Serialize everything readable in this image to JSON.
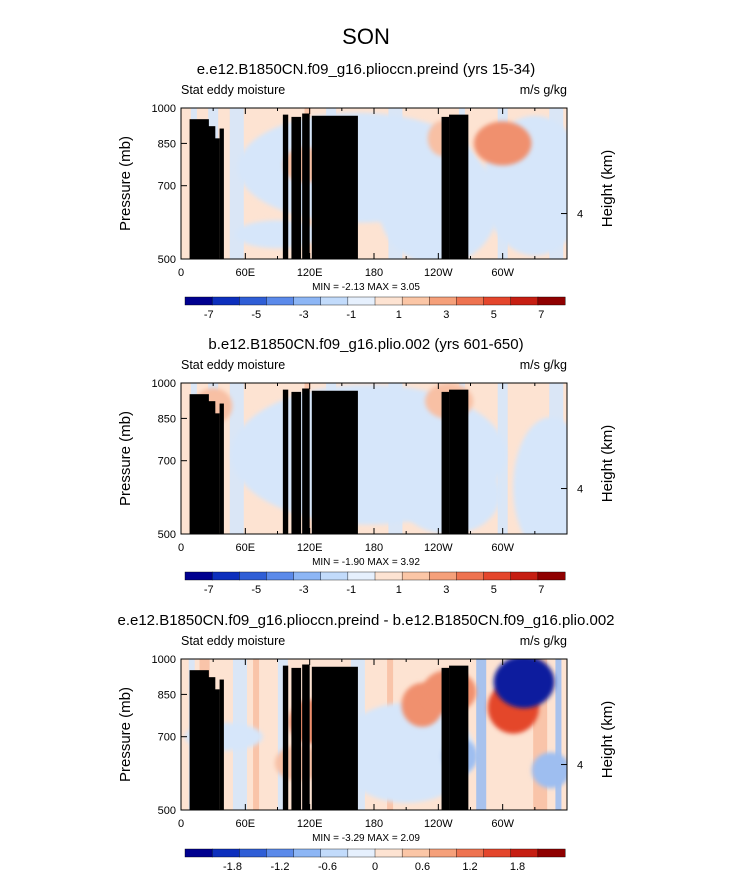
{
  "figure": {
    "title": "SON",
    "common": {
      "left_label": "Stat eddy moisture",
      "right_label": "m/s g/kg",
      "ylabel": "Pressure (mb)",
      "ylabel_right": "Height (km)",
      "yticks": [
        "500",
        "700",
        "850",
        "1000"
      ],
      "height_ticks": [
        "4"
      ],
      "xticks": [
        "0",
        "60E",
        "120E",
        "180",
        "120W",
        "60W"
      ]
    }
  },
  "colors": {
    "full_scale": [
      "#00008f",
      "#0d2fbd",
      "#2f5ed6",
      "#5b8aea",
      "#8db6f5",
      "#c2dbfb",
      "#e6f0fd",
      "#fde3d2",
      "#fbc6a6",
      "#f5a07a",
      "#ee7350",
      "#e4462c",
      "#c61e12",
      "#8f0000"
    ],
    "full_fills": {
      "neg": "#d6e6fa",
      "pos": "#fde3d2",
      "pos2": "#f8c0a4",
      "pos3": "#f0906e",
      "neg2": "#aac8f2"
    },
    "diff_fills": {
      "neg": "#d6e6fa",
      "neg2": "#9ebef0",
      "neg3": "#4d78d8",
      "neg4": "#0a1f9e",
      "pos": "#fde3d2",
      "pos2": "#f8c0a4",
      "pos3": "#f0906e",
      "pos4": "#e4462c"
    },
    "terrain": "#000000"
  },
  "chart_data": [
    {
      "type": "heatmap",
      "title": "e.e12.B1850CN.f09_g16.plioccn.preind (yrs 15-34)",
      "min_label": "MIN =   -2.13   MAX =    3.05",
      "min": -2.13,
      "max": 3.05,
      "xlim": [
        0,
        360
      ],
      "ylim": [
        1000,
        500
      ],
      "colorbar_ticks": [
        "-7",
        "-5",
        "-3",
        "-1",
        "1",
        "3",
        "5",
        "7"
      ],
      "colorbar_levels": [
        -8,
        8
      ],
      "anomalies": [
        {
          "lon": 90,
          "p": 560,
          "sign": -1,
          "level": 1
        },
        {
          "lon": 150,
          "p": 780,
          "sign": -1,
          "level": 1
        },
        {
          "lon": 250,
          "p": 620,
          "sign": -1,
          "level": 1
        },
        {
          "lon": 245,
          "p": 870,
          "sign": 1,
          "level": 2
        },
        {
          "lon": 300,
          "p": 850,
          "sign": 1,
          "level": 3
        },
        {
          "lon": 115,
          "p": 770,
          "sign": 1,
          "level": 2
        }
      ]
    },
    {
      "type": "heatmap",
      "title": "b.e12.B1850CN.f09_g16.plio.002 (yrs 601-650)",
      "min_label": "MIN =   -1.90   MAX =    3.92",
      "min": -1.9,
      "max": 3.92,
      "xlim": [
        0,
        360
      ],
      "ylim": [
        1000,
        500
      ],
      "colorbar_ticks": [
        "-7",
        "-5",
        "-3",
        "-1",
        "1",
        "3",
        "5",
        "7"
      ],
      "colorbar_levels": [
        -8,
        8
      ],
      "anomalies": [
        {
          "lon": 150,
          "p": 760,
          "sign": -1,
          "level": 1
        },
        {
          "lon": 240,
          "p": 600,
          "sign": -1,
          "level": 1
        },
        {
          "lon": 350,
          "p": 620,
          "sign": -1,
          "level": 1
        },
        {
          "lon": 250,
          "p": 920,
          "sign": 1,
          "level": 2
        },
        {
          "lon": 30,
          "p": 900,
          "sign": 1,
          "level": 2
        }
      ]
    },
    {
      "type": "heatmap",
      "title": "e.e12.B1850CN.f09_g16.plioccn.preind - b.e12.B1850CN.f09_g16.plio.002",
      "min_label": "MIN =   -3.29   MAX =    2.09",
      "min": -3.29,
      "max": 2.09,
      "xlim": [
        0,
        360
      ],
      "ylim": [
        1000,
        500
      ],
      "colorbar_ticks": [
        "-1.8",
        "-1.2",
        "-0.6",
        "0",
        "0.6",
        "1.2",
        "1.8"
      ],
      "colorbar_levels": [
        -2.4,
        2.4
      ],
      "anomalies": [
        {
          "lon": 120,
          "p": 750,
          "sign": 1,
          "level": 3
        },
        {
          "lon": 110,
          "p": 620,
          "sign": 1,
          "level": 2
        },
        {
          "lon": 225,
          "p": 810,
          "sign": 1,
          "level": 3
        },
        {
          "lon": 250,
          "p": 860,
          "sign": 1,
          "level": 3
        },
        {
          "lon": 310,
          "p": 800,
          "sign": 1,
          "level": 4
        },
        {
          "lon": 320,
          "p": 900,
          "sign": -1,
          "level": 4
        },
        {
          "lon": 260,
          "p": 640,
          "sign": -1,
          "level": 2
        },
        {
          "lon": 345,
          "p": 600,
          "sign": -1,
          "level": 2
        },
        {
          "lon": 40,
          "p": 700,
          "sign": -1,
          "level": 1
        },
        {
          "lon": 170,
          "p": 620,
          "sign": -1,
          "level": 1
        }
      ]
    }
  ]
}
